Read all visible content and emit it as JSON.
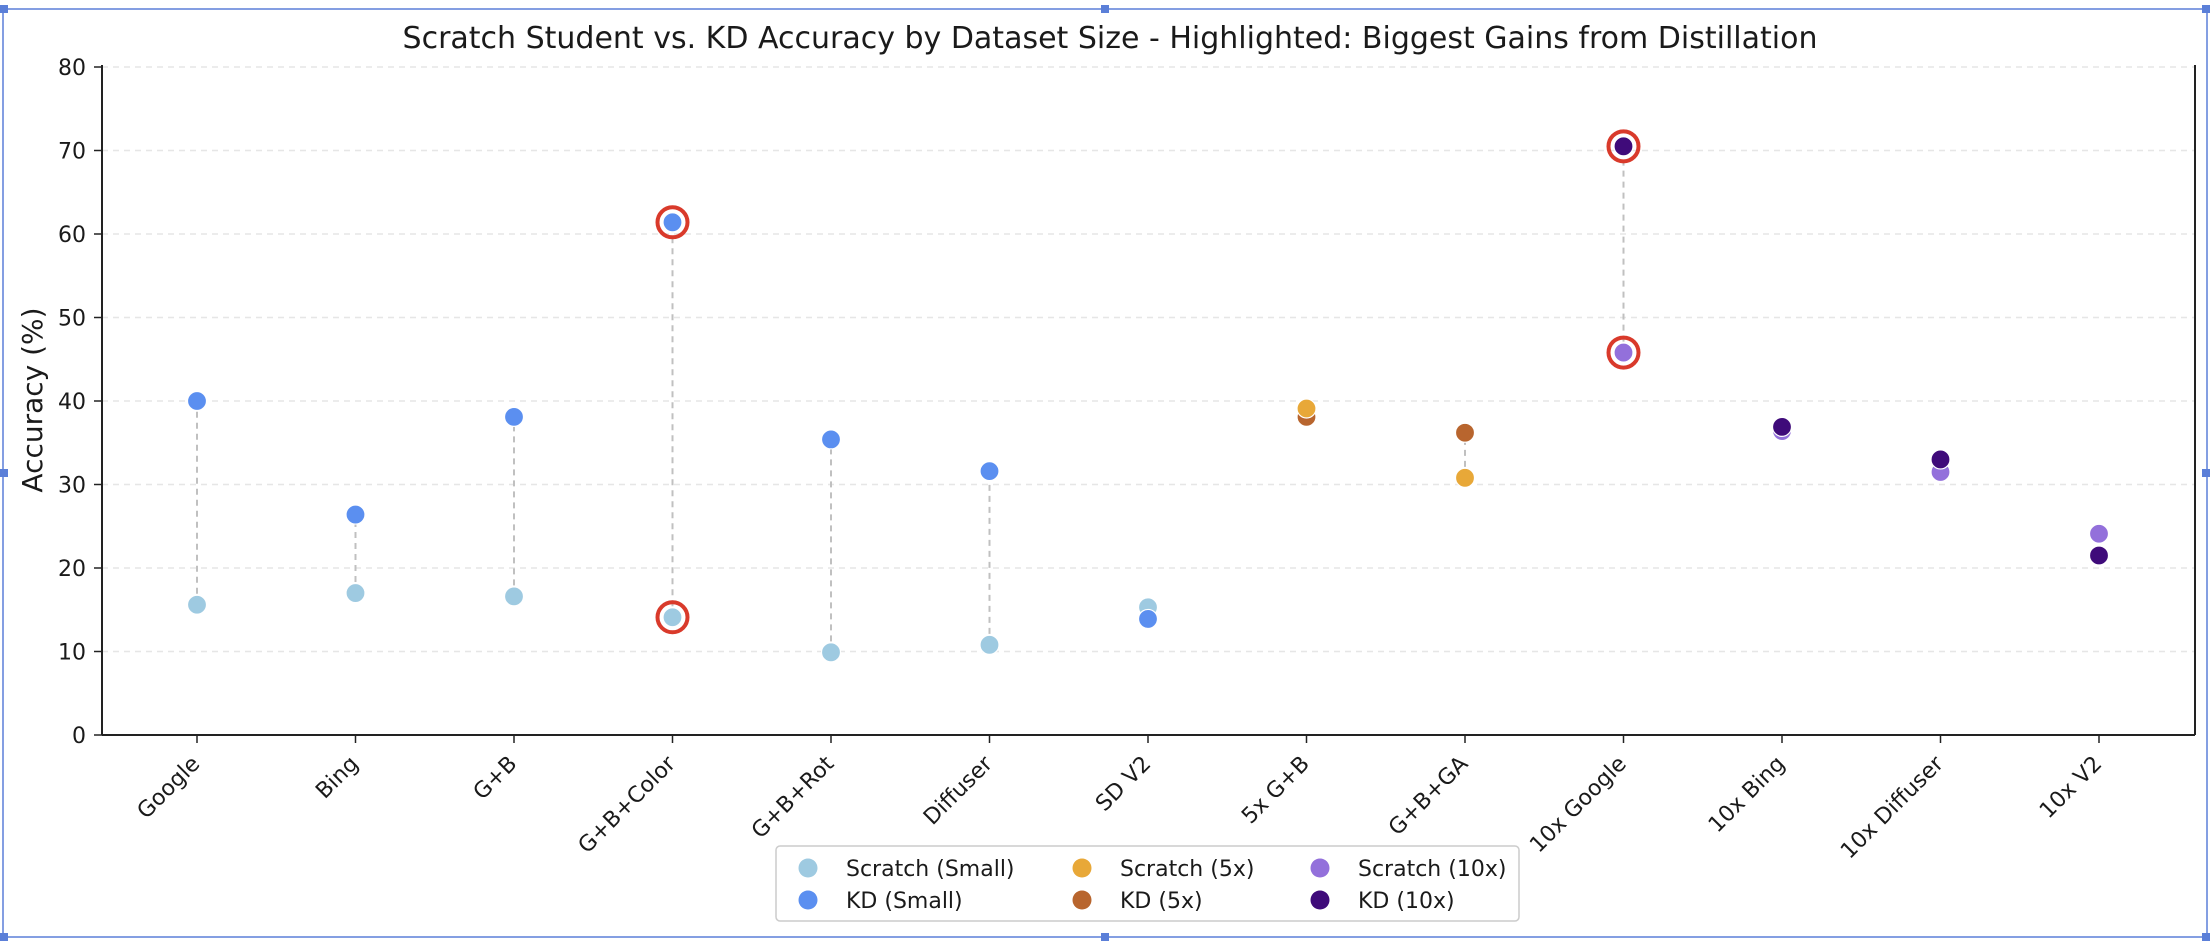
{
  "chart_data": {
    "type": "scatter",
    "title": "Scratch Student vs. KD Accuracy by Dataset Size - Highlighted: Biggest Gains from Distillation",
    "xlabel": "",
    "ylabel": "Accuracy (%)",
    "ylim": [
      0,
      80
    ],
    "yticks": [
      0,
      10,
      20,
      30,
      40,
      50,
      60,
      70,
      80
    ],
    "grid": "horizontal dashed",
    "legend_position": "bottom-center",
    "categories": [
      "Google",
      "Bing",
      "G+B",
      "G+B+Color",
      "G+B+Rot",
      "Diffuser",
      "SD V2",
      "5x G+B",
      "G+B+GA",
      "10x Google",
      "10x Bing",
      "10x Diffuser",
      "10x V2"
    ],
    "groups": [
      "small",
      "small",
      "small",
      "small",
      "small",
      "small",
      "small",
      "5x",
      "5x",
      "10x",
      "10x",
      "10x",
      "10x"
    ],
    "scratch": [
      15.6,
      17.0,
      16.6,
      14.1,
      9.9,
      10.8,
      15.3,
      39.1,
      30.8,
      45.8,
      36.4,
      31.5,
      24.1
    ],
    "kd": [
      40.0,
      26.4,
      38.1,
      61.4,
      35.4,
      31.6,
      13.9,
      38.1,
      36.2,
      70.5,
      36.9,
      33.0,
      21.5
    ],
    "connectors": [
      true,
      true,
      true,
      true,
      true,
      true,
      false,
      false,
      true,
      true,
      false,
      false,
      false
    ],
    "highlighted": [
      "G+B+Color",
      "10x Google"
    ],
    "colors": {
      "scratch_small": "#9ecae1",
      "kd_small": "#5b8ff0",
      "scratch_5x": "#e8a838",
      "kd_5x": "#b8652e",
      "scratch_10x": "#9370db",
      "kd_10x": "#3f0b7a",
      "highlight_ring": "#d93a2b",
      "connector": "#c0c0c0",
      "grid": "#e6e6e6"
    },
    "legend": [
      {
        "label": "Scratch (Small)",
        "color_key": "scratch_small"
      },
      {
        "label": "KD (Small)",
        "color_key": "kd_small"
      },
      {
        "label": "Scratch (5x)",
        "color_key": "scratch_5x"
      },
      {
        "label": "KD (5x)",
        "color_key": "kd_5x"
      },
      {
        "label": "Scratch (10x)",
        "color_key": "scratch_10x"
      },
      {
        "label": "KD (10x)",
        "color_key": "kd_10x"
      }
    ]
  }
}
